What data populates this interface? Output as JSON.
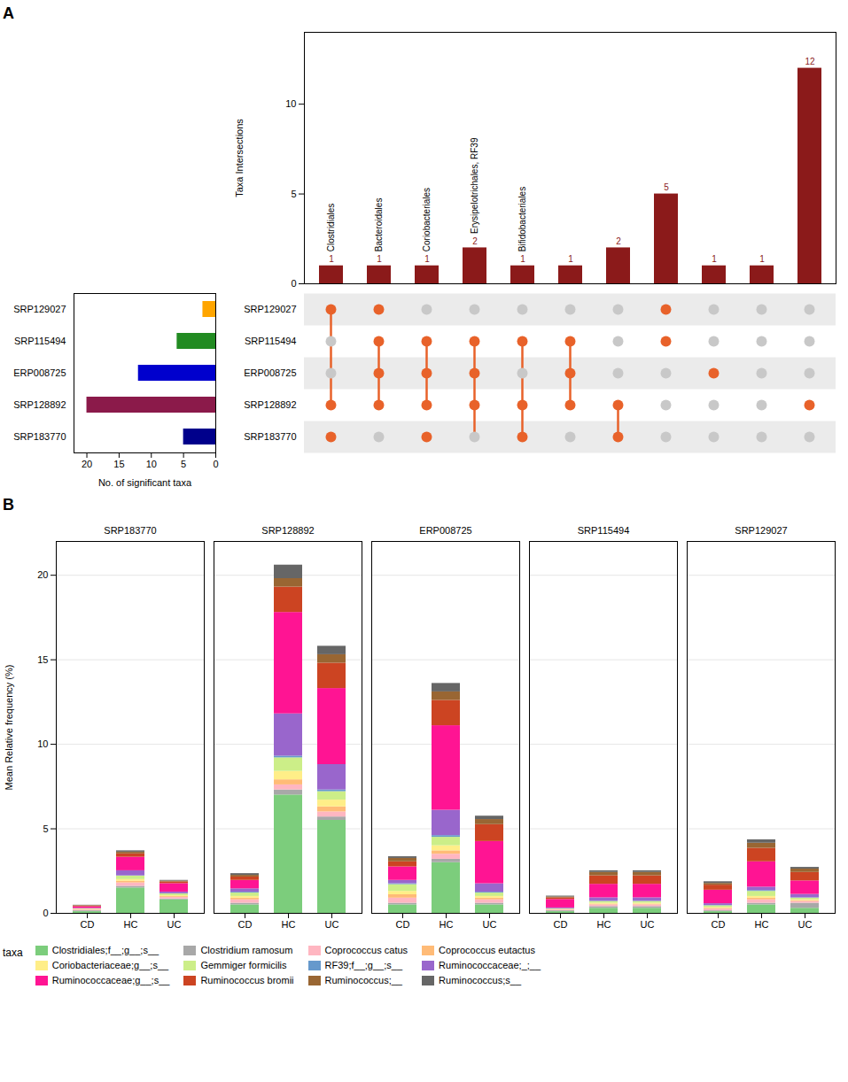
{
  "chart_data": [
    {
      "type": "bar",
      "panel": "A",
      "categories": [
        null,
        null,
        null,
        null,
        null,
        null,
        null,
        null,
        null,
        null,
        null
      ],
      "values": [
        1,
        1,
        1,
        2,
        1,
        1,
        2,
        5,
        1,
        1,
        12
      ],
      "annotations": [
        "Clostridiales",
        "Bacteroidales",
        "Coriobacteriales",
        "Erysipelotrichales, RF39",
        "Bifidobacteriales",
        null,
        null,
        null,
        null,
        null,
        null
      ],
      "color": "#8B1A1A",
      "ylabel": "Taxa Intersections",
      "ylim": [
        0,
        14
      ],
      "yticks": [
        0,
        5,
        10
      ],
      "data_labels": true,
      "tick_labels": "y"
    },
    {
      "type": "matrix",
      "categories": [
        "SRP129027",
        "SRP115494",
        "ERP008725",
        "SRP128892",
        "SRP183770"
      ],
      "cells": [
        [
          1,
          1,
          0,
          0,
          0,
          0,
          0,
          1,
          0,
          0,
          0
        ],
        [
          0,
          1,
          1,
          1,
          1,
          1,
          0,
          1,
          0,
          0,
          0
        ],
        [
          0,
          1,
          1,
          1,
          0,
          1,
          0,
          0,
          1,
          0,
          0
        ],
        [
          1,
          1,
          1,
          1,
          1,
          1,
          1,
          0,
          0,
          0,
          1
        ],
        [
          1,
          0,
          1,
          0,
          1,
          0,
          1,
          0,
          0,
          0,
          0
        ]
      ],
      "connected": [
        [
          0,
          3
        ],
        [
          1,
          3
        ],
        [
          1,
          2,
          3
        ],
        [
          1,
          2,
          3,
          4
        ],
        [
          1,
          3,
          4
        ],
        [
          1,
          2,
          3
        ],
        [
          3,
          4
        ],
        [
          0
        ],
        [
          2
        ],
        [],
        [
          3
        ]
      ],
      "colors": [
        "#C8C8C8",
        "#E8622A"
      ],
      "tick_labels": "y"
    },
    {
      "type": "bar",
      "orientation": "horizontal",
      "categories": [
        "SRP129027",
        "SRP115494",
        "ERP008725",
        "SRP128892",
        "SRP183770"
      ],
      "values": [
        2,
        6,
        12,
        20,
        5
      ],
      "colors": [
        "#FFA500",
        "#228B22",
        "#0000CD",
        "#8B1A4A",
        "#00008B"
      ],
      "xlabel": "No. of significant taxa",
      "xlim": [
        22,
        0
      ],
      "xticks": [
        20,
        15,
        10,
        5,
        0
      ]
    },
    {
      "type": "bar",
      "panel": "B",
      "stacked": true,
      "facets": [
        "SRP183770",
        "SRP128892",
        "ERP008725",
        "SRP115494",
        "SRP129027"
      ],
      "categories": [
        "CD",
        "HC",
        "UC"
      ],
      "series": [
        {
          "name": "Clostridiales;f__;g__;s__",
          "color": "#7CCD7C",
          "values": [
            [
              0.1,
              1.5,
              0.8
            ],
            [
              0.5,
              7.0,
              5.5
            ],
            [
              0.5,
              3.0,
              0.5
            ],
            [
              0.1,
              0.3,
              0.3
            ],
            [
              0.1,
              0.5,
              0.3
            ]
          ]
        },
        {
          "name": "Clostridium ramosum",
          "color": "#A8A8A8",
          "values": [
            [
              0.05,
              0.1,
              0.05
            ],
            [
              0.1,
              0.3,
              0.2
            ],
            [
              0.1,
              0.2,
              0.1
            ],
            [
              0.05,
              0.1,
              0.1
            ],
            [
              0.05,
              0.1,
              0.3
            ]
          ]
        },
        {
          "name": "Coprococcus catus",
          "color": "#FFB6C1",
          "values": [
            [
              0.05,
              0.2,
              0.1
            ],
            [
              0.2,
              0.3,
              0.3
            ],
            [
              0.3,
              0.3,
              0.2
            ],
            [
              0.05,
              0.1,
              0.1
            ],
            [
              0.1,
              0.2,
              0.1
            ]
          ]
        },
        {
          "name": "Coprococcus eutactus",
          "color": "#FFBB77",
          "values": [
            [
              0.02,
              0.1,
              0.05
            ],
            [
              0.1,
              0.3,
              0.3
            ],
            [
              0.2,
              0.2,
              0.1
            ],
            [
              0.02,
              0.05,
              0.05
            ],
            [
              0.05,
              0.1,
              0.05
            ]
          ]
        },
        {
          "name": "Coriobacteriaceae;g__;s__",
          "color": "#FFEE88",
          "values": [
            [
              0.02,
              0.1,
              0.05
            ],
            [
              0.1,
              0.5,
              0.4
            ],
            [
              0.2,
              0.3,
              0.1
            ],
            [
              0.02,
              0.05,
              0.05
            ],
            [
              0.05,
              0.1,
              0.05
            ]
          ]
        },
        {
          "name": "Gemmiger formicilis",
          "color": "#CCEE88",
          "values": [
            [
              0.02,
              0.2,
              0.1
            ],
            [
              0.2,
              0.8,
              0.5
            ],
            [
              0.4,
              0.5,
              0.2
            ],
            [
              0.02,
              0.1,
              0.1
            ],
            [
              0.1,
              0.3,
              0.1
            ]
          ]
        },
        {
          "name": "RF39;f__;g__;s__",
          "color": "#6699CC",
          "values": [
            [
              0.01,
              0.02,
              0.01
            ],
            [
              0.05,
              0.1,
              0.1
            ],
            [
              0.05,
              0.1,
              0.05
            ],
            [
              0.01,
              0.02,
              0.02
            ],
            [
              0.02,
              0.05,
              0.02
            ]
          ]
        },
        {
          "name": "Ruminococcaceae;_;__",
          "color": "#9966CC",
          "values": [
            [
              0.02,
              0.3,
              0.1
            ],
            [
              0.2,
              2.5,
              1.5
            ],
            [
              0.2,
              1.5,
              0.5
            ],
            [
              0.05,
              0.2,
              0.2
            ],
            [
              0.1,
              0.2,
              0.2
            ]
          ]
        },
        {
          "name": "Ruminococcaceae;g__;s__",
          "color": "#FF1493",
          "values": [
            [
              0.1,
              0.8,
              0.5
            ],
            [
              0.5,
              6.0,
              4.5
            ],
            [
              0.8,
              5.0,
              2.5
            ],
            [
              0.5,
              0.8,
              0.8
            ],
            [
              0.8,
              1.5,
              0.8
            ]
          ]
        },
        {
          "name": "Ruminococcus bromii",
          "color": "#CC4422",
          "values": [
            [
              0.05,
              0.2,
              0.1
            ],
            [
              0.2,
              1.5,
              1.5
            ],
            [
              0.3,
              1.5,
              1.0
            ],
            [
              0.1,
              0.5,
              0.5
            ],
            [
              0.3,
              0.8,
              0.5
            ]
          ]
        },
        {
          "name": "Ruminococcus;__",
          "color": "#996633",
          "values": [
            [
              0.02,
              0.1,
              0.05
            ],
            [
              0.1,
              0.5,
              0.5
            ],
            [
              0.2,
              0.5,
              0.3
            ],
            [
              0.05,
              0.2,
              0.2
            ],
            [
              0.1,
              0.3,
              0.2
            ]
          ]
        },
        {
          "name": "Ruminococcus;s__",
          "color": "#666666",
          "values": [
            [
              0.02,
              0.08,
              0.04
            ],
            [
              0.1,
              0.8,
              0.5
            ],
            [
              0.1,
              0.5,
              0.2
            ],
            [
              0.05,
              0.1,
              0.1
            ],
            [
              0.1,
              0.2,
              0.1
            ]
          ]
        }
      ],
      "ylabel": "Mean Relative frequency (%)",
      "ylim": [
        0,
        22
      ],
      "yticks": [
        0,
        5,
        10,
        15,
        20
      ],
      "grid": true,
      "legend": "bottom",
      "legend_title": "taxa"
    }
  ]
}
